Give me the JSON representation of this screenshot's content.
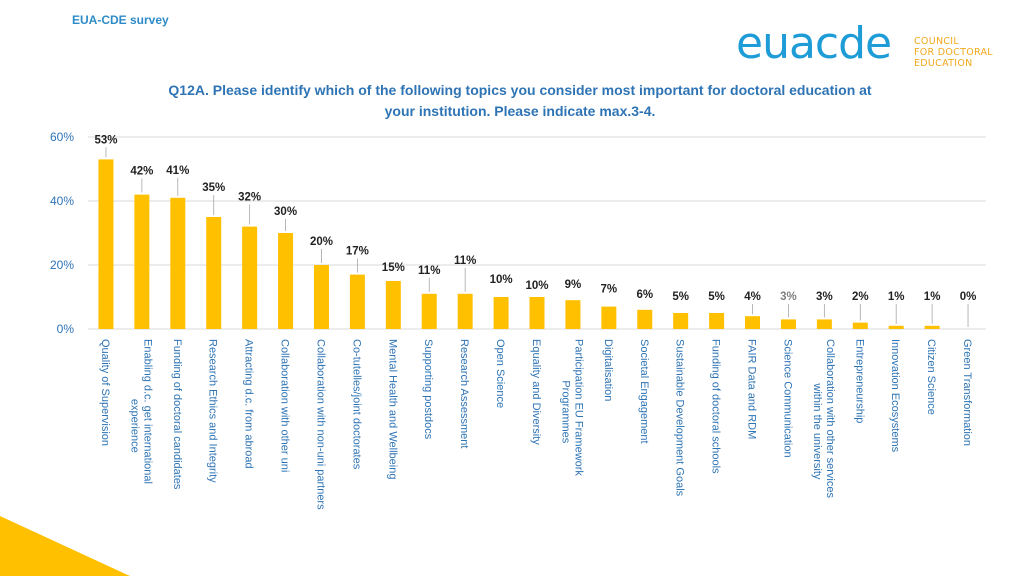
{
  "header": {
    "survey_label": "EUA-CDE survey",
    "logo": {
      "word_part1": "eua",
      "word_part2": "cde",
      "sub_lines": [
        "COUNCIL",
        "FOR DOCTORAL",
        "EDUCATION"
      ]
    }
  },
  "colors": {
    "bar": "#FFC000",
    "title": "#2E74B5",
    "axis_label": "#2E74B5",
    "label_gray": "#7F7F7F",
    "data_label": "#222222",
    "grid": "#D9D9D9",
    "accent_orange": "#F2A81D",
    "brand_blue": "#1E9CD7"
  },
  "chart_data": {
    "type": "bar",
    "title": "Q12A. Please identify which of the following topics you consider most important for doctoral education at your institution. Please indicate max.3-4.",
    "title_lines": [
      "Q12A. Please identify which of the following topics you consider most important for doctoral education at",
      "your institution. Please indicate max.3-4."
    ],
    "xlabel": "",
    "ylabel": "",
    "ylim": [
      0,
      60
    ],
    "yticks": [
      0,
      20,
      40,
      60
    ],
    "ytick_labels": [
      "0%",
      "20%",
      "40%",
      "60%"
    ],
    "grid": true,
    "categories": [
      [
        "Quality of Supervision"
      ],
      [
        "Enabling d.c. get international",
        "experience"
      ],
      [
        "Funding of doctoral candidates"
      ],
      [
        "Research Ethics and Integrity"
      ],
      [
        "Attracting d.c. from abroad"
      ],
      [
        "Collaboration with other uni"
      ],
      [
        "Collaboration with non-uni partners"
      ],
      [
        "Co-tutelles/joint doctorates"
      ],
      [
        "Mental Health and Wellbeing"
      ],
      [
        "Supporting postdocs"
      ],
      [
        "Research Assessment"
      ],
      [
        "Open Science"
      ],
      [
        "Equality and Diversity"
      ],
      [
        "Participation EU Framework",
        "Programmes"
      ],
      [
        "Digitalisation"
      ],
      [
        "Societal Engagement"
      ],
      [
        "Sustainable Development Goals"
      ],
      [
        "Funding of doctoral schools"
      ],
      [
        "FAIR Data and RDM"
      ],
      [
        "Science Communication"
      ],
      [
        "Collaboration with other services",
        "within the university"
      ],
      [
        "Entrepreneurship"
      ],
      [
        "Innovation Ecosystems"
      ],
      [
        "Citizen Science"
      ],
      [
        "Green Transformation"
      ]
    ],
    "values": [
      53,
      42,
      41,
      35,
      32,
      30,
      20,
      17,
      15,
      11,
      11,
      10,
      10,
      9,
      7,
      6,
      5,
      5,
      4,
      3,
      3,
      2,
      1,
      1,
      0
    ],
    "data_labels": [
      "53%",
      "42%",
      "41%",
      "35%",
      "32%",
      "30%",
      "20%",
      "17%",
      "15%",
      "11%",
      "11%",
      "10%",
      "10%",
      "9%",
      "7%",
      "6%",
      "5%",
      "5%",
      "4%",
      "3%",
      "3%",
      "2%",
      "1%",
      "1%",
      "0%"
    ]
  }
}
